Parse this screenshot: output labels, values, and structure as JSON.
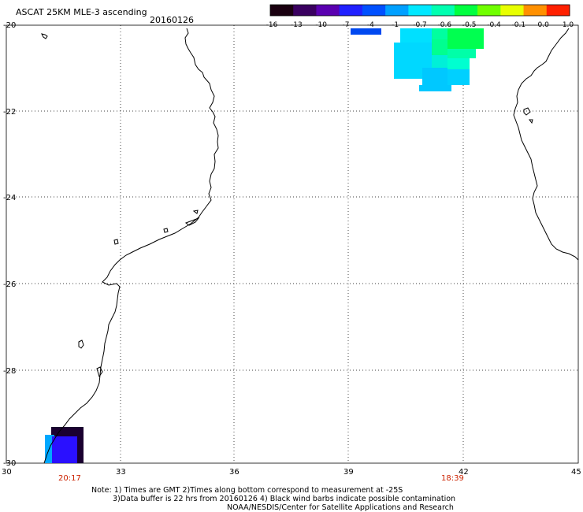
{
  "header": {
    "title": "ASCAT 25KM MLE-3 ascending",
    "date": "20160126"
  },
  "colorbar": {
    "labels": [
      "-16",
      "-13",
      "-10",
      "-7",
      "-4",
      "-1",
      "-0.7",
      "-0.6",
      "-0.5",
      "-0.4",
      "-0.1",
      "0.0",
      "1.0"
    ],
    "colors": [
      "#1a0010",
      "#3a0060",
      "#5a00b0",
      "#2020ff",
      "#0050ff",
      "#00a0ff",
      "#00e8ff",
      "#00ffb0",
      "#00ff40",
      "#70ff00",
      "#e8ff00",
      "#ff9000",
      "#ff2000"
    ]
  },
  "axes": {
    "x_ticks": [
      "30",
      "33",
      "36",
      "39",
      "42",
      "45"
    ],
    "y_ticks": [
      "-20",
      "-22",
      "-24",
      "-26",
      "-28",
      "-30"
    ],
    "lon_range": [
      30,
      45
    ],
    "lat_range": [
      -30,
      -20
    ]
  },
  "pass_times": {
    "first": "20:17",
    "second": "18:39",
    "color": "#cc2200"
  },
  "notes": {
    "line1": "Note: 1) Times are GMT 2)Times along bottom correspond to measurement at -25S",
    "line2": "3)Data buffer is 22 hrs from 20160126 4) Black wind barbs indicate possible contamination",
    "line3": "NOAA/NESDIS/Center for Satellite Applications and Research"
  }
}
